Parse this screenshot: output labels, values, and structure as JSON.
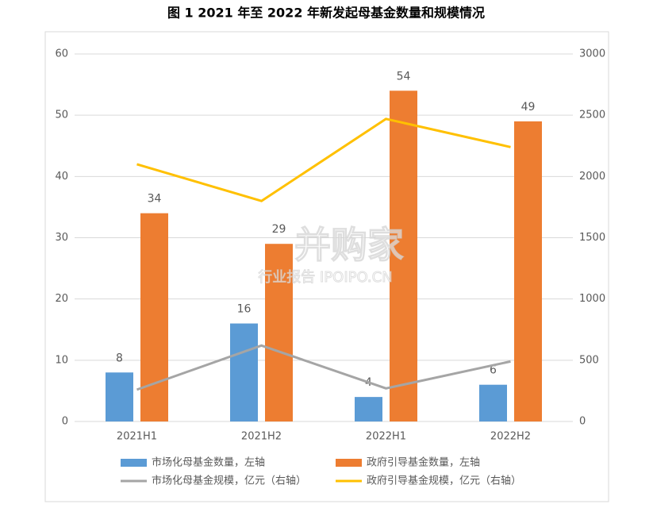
{
  "chart_data": {
    "type": "bar",
    "title": "图 1 2021 年至 2022 年新发起母基金数量和规模情况",
    "categories": [
      "2021H1",
      "2021H2",
      "2022H1",
      "2022H2"
    ],
    "series": [
      {
        "name": "市场化母基金数量，左轴",
        "color": "#5b9bd5",
        "type": "bar",
        "show_labels": true,
        "values": [
          8,
          16,
          4,
          6
        ]
      },
      {
        "name": "政府引导基金数量，左轴",
        "color": "#ed7d31",
        "type": "bar",
        "show_labels": true,
        "values": [
          34,
          29,
          54,
          49
        ]
      },
      {
        "name": "市场化母基金规模，亿元（右轴）",
        "color": "#a5a5a5",
        "type": "line",
        "axis": "y2",
        "values": [
          260,
          620,
          270,
          490
        ]
      },
      {
        "name": "政府引导基金规模，亿元（右轴）",
        "color": "#ffc000",
        "type": "line",
        "axis": "y2",
        "values": [
          2100,
          1800,
          2470,
          2240
        ]
      }
    ],
    "ylim": [
      0,
      60
    ],
    "yticks": [
      0,
      10,
      20,
      30,
      40,
      50,
      60
    ],
    "y2lim": [
      0,
      3000
    ],
    "y2ticks": [
      0,
      500,
      1000,
      1500,
      2000,
      2500,
      3000
    ],
    "grid": true,
    "legend": "bottom",
    "watermark": [
      "并购家",
      "行业报告 IPOIPO.CN"
    ]
  }
}
